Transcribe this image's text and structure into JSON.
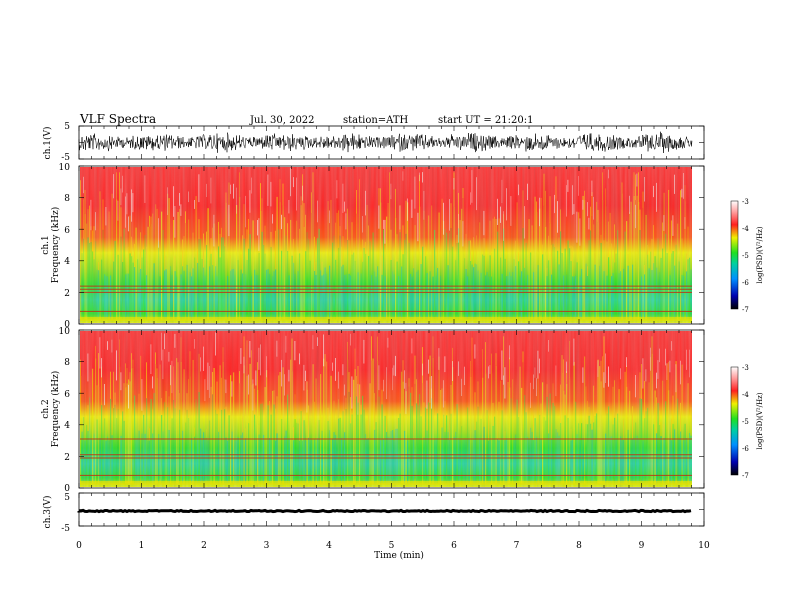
{
  "header": {
    "title": "VLF Spectra",
    "date": "Jul. 30, 2022",
    "station": "station=ATH",
    "start": "start UT = 21:20:1"
  },
  "colors": {
    "low": "#0000b0",
    "mid_low": "#00c0ff",
    "mid": "#20e020",
    "mid_high": "#f0f000",
    "high": "#ff2020",
    "top": "#ffffff",
    "trace": "#000000"
  },
  "chart_data": [
    {
      "type": "line",
      "ylabel": "ch.1(V)",
      "ylim": [
        -5,
        5
      ],
      "yticks": [
        "5",
        "-5"
      ],
      "xlim": [
        0,
        10
      ],
      "description_of_series": "broadband noisy waveform"
    },
    {
      "type": "heatmap",
      "ylabel_line1": "ch.1",
      "ylabel_line2": "Frequency (kHz)",
      "ylim": [
        0,
        10
      ],
      "yticks": [
        "0",
        "2",
        "4",
        "6",
        "8",
        "10"
      ],
      "xlim": [
        0,
        10
      ],
      "horizontal_lines_khz": [
        0.8,
        2.0,
        2.2,
        2.4
      ],
      "colorbar": {
        "label": "log(PSD)(V²/Hz)",
        "range": [
          -7,
          -3
        ],
        "ticks": [
          "-3",
          "-4",
          "-5",
          "-6",
          "-7"
        ]
      }
    },
    {
      "type": "heatmap",
      "ylabel_line1": "ch.2",
      "ylabel_line2": "Frequency (kHz)",
      "ylim": [
        0,
        10
      ],
      "yticks": [
        "0",
        "2",
        "4",
        "6",
        "8",
        "10"
      ],
      "xlim": [
        0,
        10
      ],
      "horizontal_lines_khz": [
        0.8,
        1.9,
        2.1,
        3.1
      ],
      "colorbar": {
        "label": "log(PSD)(V²/Hz)",
        "range": [
          -7,
          -3
        ],
        "ticks": [
          "-3",
          "-4",
          "-5",
          "-6",
          "-7"
        ]
      }
    },
    {
      "type": "line",
      "ylabel": "ch.3(V)",
      "ylim": [
        -5,
        5
      ],
      "yticks": [
        "5",
        "-5"
      ],
      "xlim": [
        0,
        10
      ],
      "xlabel": "Time (min)",
      "xticks": [
        "0",
        "1",
        "2",
        "3",
        "4",
        "5",
        "6",
        "7",
        "8",
        "9",
        "10"
      ],
      "description_of_series": "near-constant trace around 0 V"
    }
  ]
}
